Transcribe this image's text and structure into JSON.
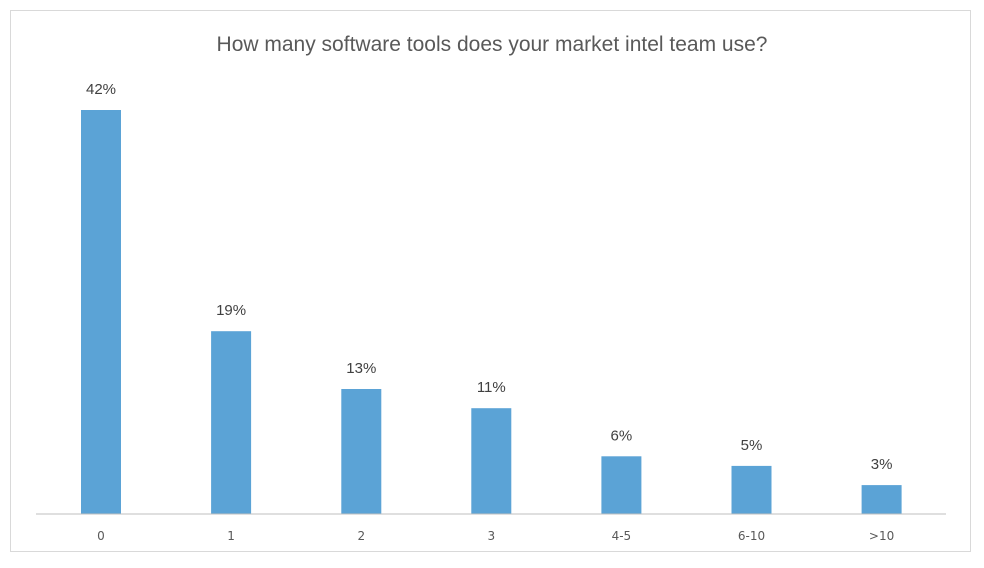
{
  "chart_data": {
    "type": "bar",
    "title": "How many software tools does your market intel team use?",
    "categories": [
      "0",
      "1",
      "2",
      "3",
      "4-5",
      "6-10",
      ">10"
    ],
    "values": [
      42,
      19,
      13,
      11,
      6,
      5,
      3
    ],
    "value_labels": [
      "42%",
      "19%",
      "13%",
      "11%",
      "6%",
      "5%",
      "3%"
    ],
    "unit": "%",
    "xlabel": "",
    "ylabel": "",
    "ylim": [
      0,
      42
    ],
    "grid": false,
    "legend": "none",
    "bar_color": "#5ba3d6",
    "axis_color": "#bfbfbf",
    "label_color": "#404040",
    "title_color": "#595959"
  }
}
